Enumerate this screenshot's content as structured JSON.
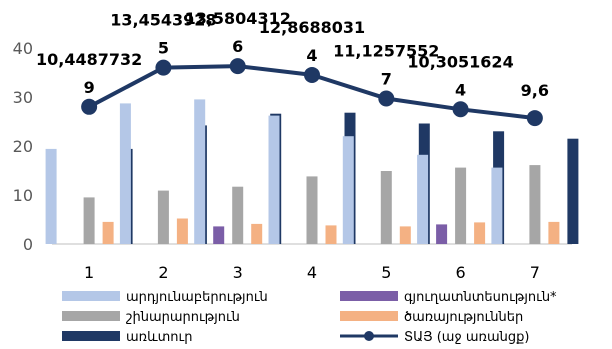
{
  "chart_data": {
    "type": "bar",
    "categories": [
      "1",
      "2",
      "3",
      "4",
      "5",
      "6",
      "7"
    ],
    "ylim": [
      0,
      40
    ],
    "yticks": [
      0,
      10,
      20,
      30,
      40
    ],
    "grid": false,
    "legend_position": "bottom",
    "series": [
      {
        "name": "արդյունաբերություն",
        "type": "bar",
        "color": "#b4c7e7",
        "values": [
          19.4,
          28.7,
          29.5,
          26.2,
          22.0,
          18.2,
          15.6
        ]
      },
      {
        "name": "գյուղատնտեսություն*",
        "type": "bar",
        "color": "#7b5ea7",
        "values": [
          0,
          0,
          3.6,
          0,
          0,
          4.0,
          0
        ]
      },
      {
        "name": "շինարարություն",
        "type": "bar",
        "color": "#a6a6a6",
        "values": [
          9.5,
          10.9,
          11.7,
          13.8,
          14.9,
          15.6,
          16.1
        ]
      },
      {
        "name": "ծառայություններ",
        "type": "bar",
        "color": "#f4b183",
        "values": [
          4.5,
          5.2,
          4.1,
          3.8,
          3.6,
          4.4,
          4.5
        ]
      },
      {
        "name": "առևտուր",
        "type": "bar",
        "color": "#1f3864",
        "values": [
          19.4,
          24.2,
          26.6,
          26.8,
          24.6,
          23.0,
          21.5
        ]
      },
      {
        "name": "ՏԱՅ (աջ առանցք)",
        "type": "line",
        "color": "#1f3864",
        "values": [
          28.0,
          36.0,
          36.3,
          34.5,
          29.7,
          27.5,
          25.7
        ]
      }
    ],
    "data_labels": [
      {
        "line1": "10,4487732",
        "line2": "9"
      },
      {
        "line1": "13,4543928",
        "line2": "5"
      },
      {
        "line1": "13,5804312",
        "line2": "6"
      },
      {
        "line1": "12,8688031",
        "line2": "4"
      },
      {
        "line1": "11,1257552",
        "line2": "7"
      },
      {
        "line1": "10,3051624",
        "line2": "4"
      },
      {
        "line1": "9,6",
        "line2": ""
      }
    ]
  }
}
